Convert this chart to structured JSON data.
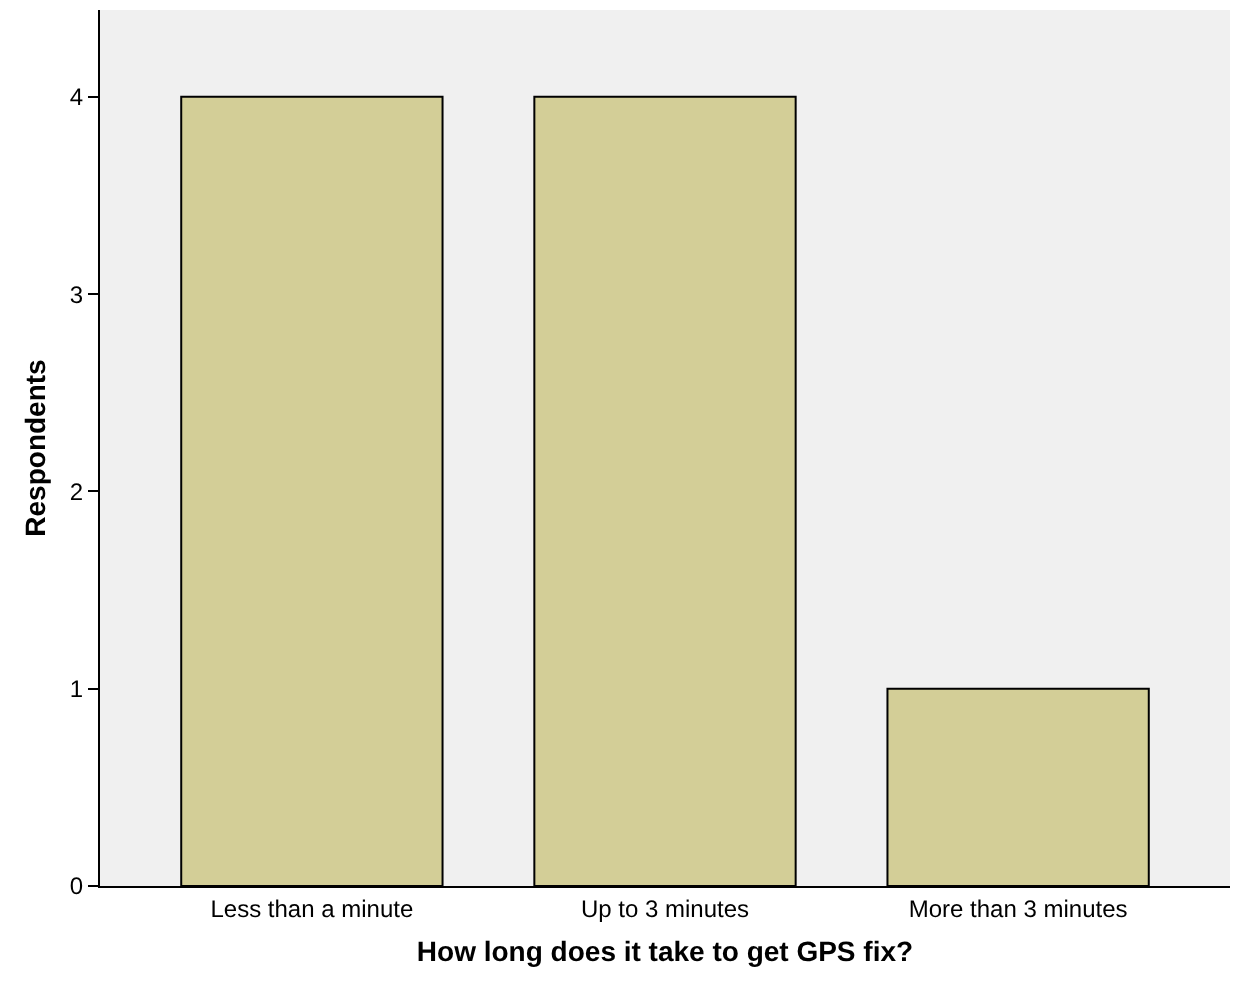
{
  "chart_data": {
    "type": "bar",
    "xlabel": "How long does it take to get GPS fix?",
    "ylabel": "Respondents",
    "categories": [
      "Less than a minute",
      "Up to 3 minutes",
      "More than 3 minutes"
    ],
    "values": [
      4,
      4,
      1
    ],
    "color": "#d3ce97",
    "ylim": [
      0,
      4.44
    ],
    "yticks": [
      0,
      1,
      2,
      3,
      4
    ],
    "grid": false,
    "legend": false
  }
}
